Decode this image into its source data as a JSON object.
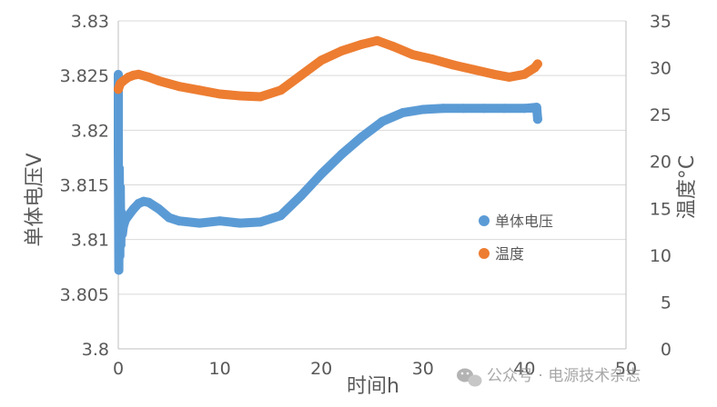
{
  "chart_data": {
    "type": "scatter",
    "xlabel": "时间h",
    "ylabel": "单体电压V",
    "y2label": "温度°C",
    "xlim": [
      0,
      50
    ],
    "ylim": [
      3.8,
      3.83
    ],
    "y2lim": [
      0,
      35
    ],
    "x_ticks": [
      "0",
      "10",
      "20",
      "30",
      "40",
      "50"
    ],
    "y_ticks": [
      "3.8",
      "3.805",
      "3.81",
      "3.815",
      "3.82",
      "3.825",
      "3.83"
    ],
    "y2_ticks": [
      "0",
      "5",
      "10",
      "15",
      "20",
      "25",
      "30",
      "35"
    ],
    "grid": "horizontal",
    "legend_position": "right",
    "series": [
      {
        "name": "单体电压",
        "axis": "left",
        "color": "#5B9BD5",
        "points": [
          [
            0.0,
            3.8251
          ],
          [
            0.0,
            3.8237
          ],
          [
            0.0,
            3.8183
          ],
          [
            0.05,
            3.8072
          ],
          [
            0.1,
            3.8165
          ],
          [
            0.15,
            3.8085
          ],
          [
            0.2,
            3.8148
          ],
          [
            0.25,
            3.8095
          ],
          [
            0.3,
            3.8125
          ],
          [
            0.4,
            3.8105
          ],
          [
            0.5,
            3.8112
          ],
          [
            0.7,
            3.8118
          ],
          [
            1.0,
            3.8122
          ],
          [
            1.5,
            3.8128
          ],
          [
            2.0,
            3.8133
          ],
          [
            2.5,
            3.8135
          ],
          [
            3.0,
            3.8134
          ],
          [
            4.0,
            3.8128
          ],
          [
            5.0,
            3.812
          ],
          [
            6.0,
            3.8117
          ],
          [
            8.0,
            3.8115
          ],
          [
            10.0,
            3.8117
          ],
          [
            12.0,
            3.8115
          ],
          [
            14.0,
            3.8116
          ],
          [
            16.0,
            3.8122
          ],
          [
            18.0,
            3.814
          ],
          [
            20.0,
            3.816
          ],
          [
            22.0,
            3.8178
          ],
          [
            24.0,
            3.8194
          ],
          [
            26.0,
            3.8208
          ],
          [
            28.0,
            3.8216
          ],
          [
            30.0,
            3.8219
          ],
          [
            32.0,
            3.822
          ],
          [
            34.0,
            3.822
          ],
          [
            36.0,
            3.822
          ],
          [
            38.0,
            3.822
          ],
          [
            40.0,
            3.822
          ],
          [
            41.2,
            3.8221
          ],
          [
            41.3,
            3.821
          ]
        ]
      },
      {
        "name": "温度",
        "axis": "right",
        "color": "#ED7D31",
        "points": [
          [
            0.0,
            27.7
          ],
          [
            0.2,
            28.3
          ],
          [
            0.5,
            28.6
          ],
          [
            1.0,
            29.0
          ],
          [
            1.5,
            29.2
          ],
          [
            2.0,
            29.3
          ],
          [
            3.0,
            29.0
          ],
          [
            4.0,
            28.6
          ],
          [
            6.0,
            28.0
          ],
          [
            8.0,
            27.6
          ],
          [
            10.0,
            27.2
          ],
          [
            12.0,
            27.0
          ],
          [
            14.0,
            26.9
          ],
          [
            16.0,
            27.6
          ],
          [
            18.0,
            29.2
          ],
          [
            20.0,
            30.8
          ],
          [
            22.0,
            31.8
          ],
          [
            24.0,
            32.5
          ],
          [
            25.5,
            32.9
          ],
          [
            27.0,
            32.3
          ],
          [
            29.0,
            31.4
          ],
          [
            31.0,
            30.9
          ],
          [
            33.0,
            30.3
          ],
          [
            35.0,
            29.8
          ],
          [
            37.0,
            29.3
          ],
          [
            38.5,
            29.0
          ],
          [
            40.0,
            29.3
          ],
          [
            41.0,
            30.0
          ],
          [
            41.3,
            30.4
          ]
        ]
      }
    ]
  },
  "watermark": {
    "text": "公众号 · 电源技术杂志",
    "icon": "wechat-icon"
  }
}
